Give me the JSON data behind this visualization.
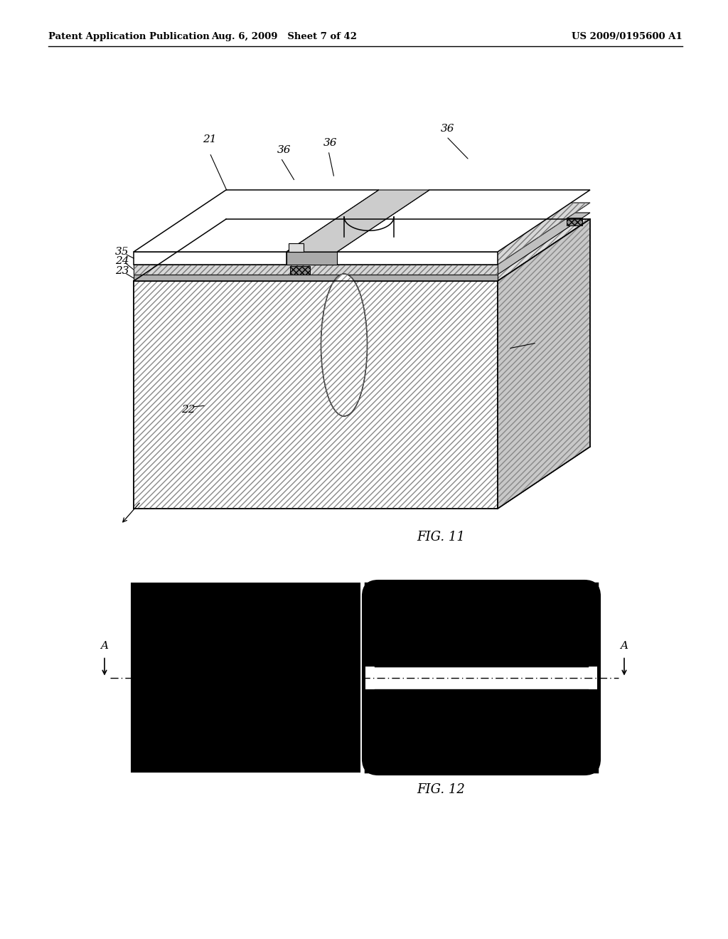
{
  "header_left": "Patent Application Publication",
  "header_mid": "Aug. 6, 2009   Sheet 7 of 42",
  "header_right": "US 2009/0195600 A1",
  "fig11_caption": "FIG. 11",
  "fig12_caption": "FIG. 12",
  "bg": "#ffffff"
}
